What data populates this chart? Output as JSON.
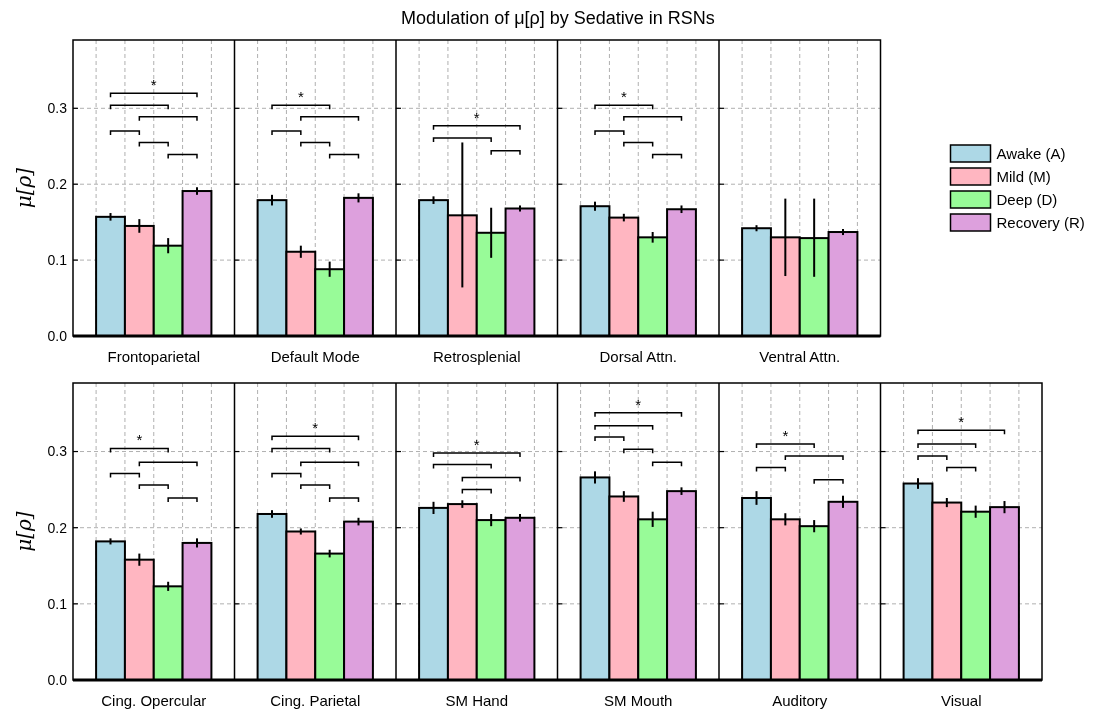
{
  "chart_data": [
    {
      "type": "bar",
      "title": "Modulation of μ[ρ] by Sedative in RSNs",
      "ylabel": "μ[ρ]",
      "categories": [
        "Frontoparietal",
        "Default Mode",
        "Retrosplenial",
        "Dorsal Attn.",
        "Ventral Attn."
      ],
      "grid": true,
      "legend": "right",
      "ylim": [
        0,
        0.39
      ],
      "yticks": [
        {
          "value": 0,
          "label": "0.0"
        },
        {
          "value": 0.1,
          "label": "0.1"
        },
        {
          "value": 0.2,
          "label": "0.2"
        },
        {
          "value": 0.3,
          "label": "0.3"
        }
      ],
      "annotations": [
        "*",
        "*",
        "*",
        "*"
      ],
      "series": [
        {
          "name": "Awake (A)",
          "color": "#add8e6",
          "values": [
            0.157,
            0.179,
            0.179,
            0.171,
            0.142
          ],
          "errors": [
            0.005,
            0.007,
            0.005,
            0.006,
            0.004
          ]
        },
        {
          "name": "Mild (M)",
          "color": "#ffb6c1",
          "values": [
            0.145,
            0.111,
            0.159,
            0.156,
            0.13
          ],
          "errors": [
            0.009,
            0.008,
            [
              0.064,
              0.255
            ],
            0.005,
            [
              0.079,
              0.181
            ]
          ]
        },
        {
          "name": "Deep (D)",
          "color": "#98fb98",
          "values": [
            0.119,
            0.088,
            0.136,
            0.13,
            0.129
          ],
          "errors": [
            0.01,
            0.01,
            [
              0.103,
              0.169
            ],
            0.007,
            [
              0.078,
              0.181
            ]
          ]
        },
        {
          "name": "Recovery (R)",
          "color": "#dda0dd",
          "values": [
            0.191,
            0.182,
            0.168,
            0.167,
            0.137
          ],
          "errors": [
            0.005,
            0.006,
            0.004,
            0.005,
            0.004
          ]
        }
      ]
    },
    {
      "type": "bar",
      "ylabel": "μ[ρ]",
      "categories": [
        "Cing. Opercular",
        "Cing. Parietal",
        "SM Hand",
        "SM Mouth",
        "Auditory",
        "Visual"
      ],
      "grid": true,
      "ylim": [
        0,
        0.39
      ],
      "yticks": [
        {
          "value": 0,
          "label": "0.0"
        },
        {
          "value": 0.1,
          "label": "0.1"
        },
        {
          "value": 0.2,
          "label": "0.2"
        },
        {
          "value": 0.3,
          "label": "0.3"
        }
      ],
      "annotations": [
        "*",
        "*",
        "*",
        "*",
        "*",
        "*"
      ],
      "series": [
        {
          "color": "#add8e6",
          "values": [
            0.182,
            0.218,
            0.226,
            0.266,
            0.239,
            0.258
          ],
          "errors": [
            0.004,
            0.005,
            0.008,
            0.008,
            0.009,
            0.007
          ]
        },
        {
          "color": "#ffb6c1",
          "values": [
            0.158,
            0.195,
            0.231,
            0.241,
            0.211,
            0.233
          ],
          "errors": [
            0.008,
            0.004,
            0.005,
            0.007,
            0.008,
            0.006
          ]
        },
        {
          "color": "#98fb98",
          "values": [
            0.123,
            0.166,
            0.21,
            0.211,
            0.202,
            0.221
          ],
          "errors": [
            0.006,
            0.005,
            0.008,
            0.01,
            0.008,
            0.008
          ]
        },
        {
          "color": "#dda0dd",
          "values": [
            0.18,
            0.208,
            0.213,
            0.248,
            0.234,
            0.227
          ],
          "errors": [
            0.006,
            0.005,
            0.005,
            0.005,
            0.008,
            0.008
          ]
        }
      ]
    }
  ]
}
